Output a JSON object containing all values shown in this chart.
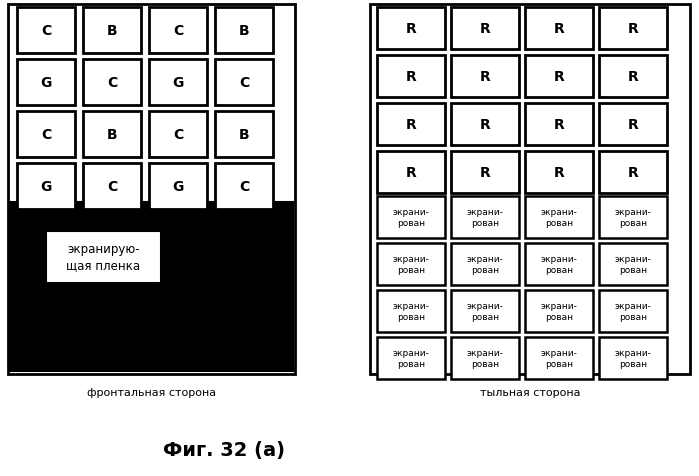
{
  "fig_width": 6.99,
  "fig_height": 4.77,
  "bg_color": "#ffffff",
  "left_panel": {
    "label": "фронтальная сторона",
    "cells": [
      [
        "C",
        "B",
        "C",
        "B"
      ],
      [
        "G",
        "C",
        "G",
        "C"
      ],
      [
        "C",
        "B",
        "C",
        "B"
      ],
      [
        "G",
        "C",
        "G",
        "C"
      ]
    ],
    "black_area_label": "экранирую-\nщая пленка"
  },
  "right_panel": {
    "label": "тыльная сторона",
    "top_label": "R",
    "bottom_label": "экрани-\nрован"
  },
  "figure_label": "Фиг. 32 (а)"
}
